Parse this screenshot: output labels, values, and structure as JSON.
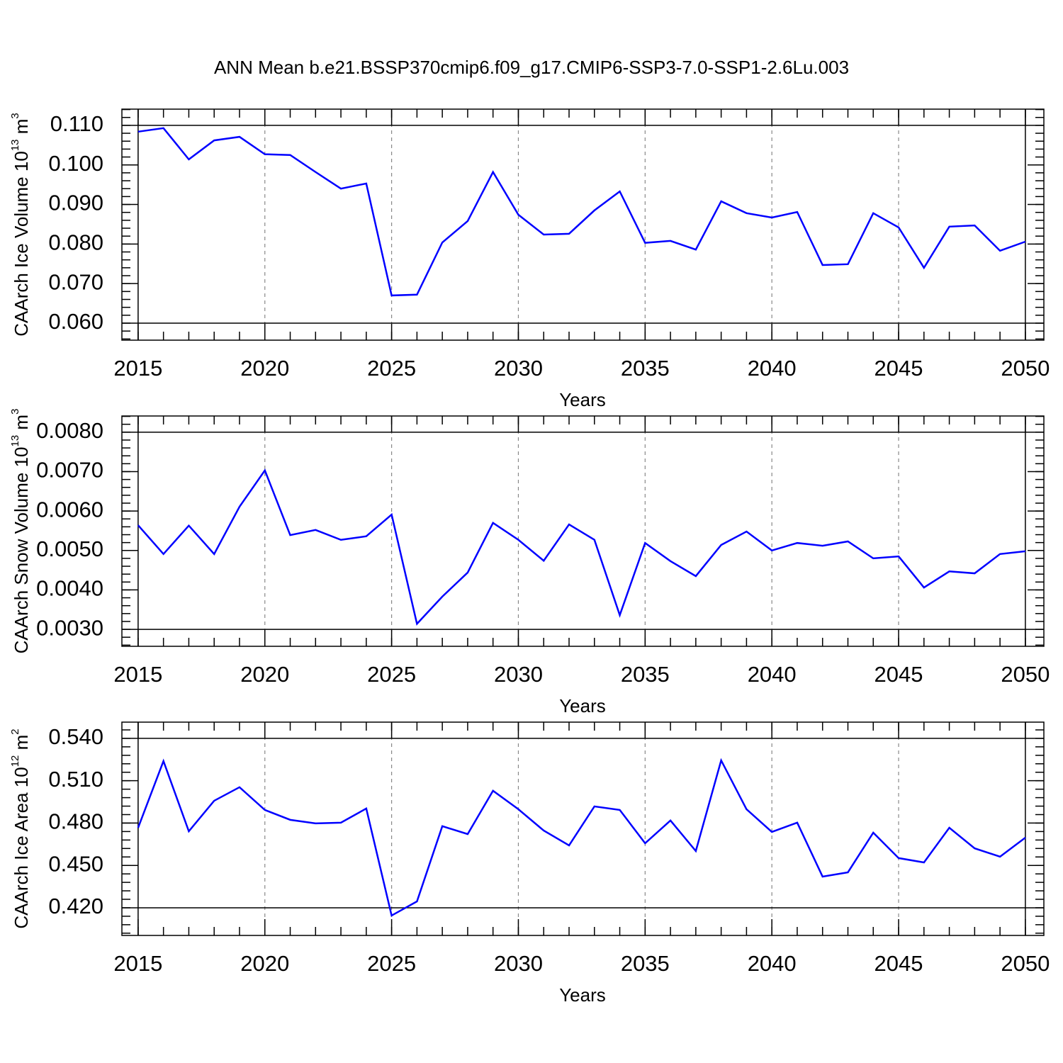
{
  "title": "ANN Mean b.e21.BSSP370cmip6.f09_g17.CMIP6-SSP3-7.0-SSP1-2.6Lu.003",
  "chart_data": [
    {
      "type": "line",
      "xlabel": "Years",
      "ylabel": {
        "text": "CAArch Ice Volume 10",
        "sup": "13",
        "unit": " m",
        "unit_sup": "3"
      },
      "x": [
        2015,
        2016,
        2017,
        2018,
        2019,
        2020,
        2021,
        2022,
        2023,
        2024,
        2025,
        2026,
        2027,
        2028,
        2029,
        2030,
        2031,
        2032,
        2033,
        2034,
        2035,
        2036,
        2037,
        2038,
        2039,
        2040,
        2041,
        2042,
        2043,
        2044,
        2045,
        2046,
        2047,
        2048,
        2049,
        2050
      ],
      "series": [
        {
          "color": "#0000ff",
          "values": [
            0.1084,
            0.1093,
            0.1014,
            0.1062,
            0.1071,
            0.1027,
            0.1025,
            0.0982,
            0.094,
            0.0953,
            0.067,
            0.0672,
            0.0804,
            0.0858,
            0.0982,
            0.0874,
            0.0824,
            0.0826,
            0.0885,
            0.0933,
            0.0803,
            0.0808,
            0.0786,
            0.0908,
            0.0878,
            0.0867,
            0.0881,
            0.0747,
            0.0749,
            0.0878,
            0.0842,
            0.074,
            0.0844,
            0.0847,
            0.0783,
            0.0806
          ]
        }
      ],
      "xlim": [
        2014.36,
        2050.73
      ],
      "xticks": [
        2015,
        2020,
        2025,
        2030,
        2035,
        2040,
        2045,
        2050
      ],
      "x_minor_step": 1,
      "ylim": [
        0.0557,
        0.1141
      ],
      "yticks": [
        {
          "value": 0.06,
          "label": "0.060"
        },
        {
          "value": 0.07,
          "label": "0.070"
        },
        {
          "value": 0.08,
          "label": "0.080"
        },
        {
          "value": 0.09,
          "label": "0.090"
        },
        {
          "value": 0.1,
          "label": "0.100"
        },
        {
          "value": 0.11,
          "label": "0.110"
        }
      ],
      "y_minor_step": 0.002,
      "xgrid": true
    },
    {
      "type": "line",
      "xlabel": "Years",
      "ylabel": {
        "text": "CAArch Snow Volume 10",
        "sup": "13",
        "unit": " m",
        "unit_sup": "3"
      },
      "x": [
        2015,
        2016,
        2017,
        2018,
        2019,
        2020,
        2021,
        2022,
        2023,
        2024,
        2025,
        2026,
        2027,
        2028,
        2029,
        2030,
        2031,
        2032,
        2033,
        2034,
        2035,
        2036,
        2037,
        2038,
        2039,
        2040,
        2041,
        2042,
        2043,
        2044,
        2045,
        2046,
        2047,
        2048,
        2049,
        2050
      ],
      "series": [
        {
          "color": "#0000ff",
          "values": [
            0.00564,
            0.00491,
            0.00563,
            0.00491,
            0.00611,
            0.00703,
            0.00539,
            0.00552,
            0.00527,
            0.00536,
            0.00591,
            0.00314,
            0.00383,
            0.00444,
            0.0057,
            0.00527,
            0.00474,
            0.00566,
            0.00527,
            0.00336,
            0.00519,
            0.00473,
            0.00435,
            0.00514,
            0.00548,
            0.005,
            0.00519,
            0.00512,
            0.00523,
            0.0048,
            0.00485,
            0.00406,
            0.00447,
            0.00442,
            0.00491,
            0.00498
          ]
        }
      ],
      "xlim": [
        2014.36,
        2050.73
      ],
      "xticks": [
        2015,
        2020,
        2025,
        2030,
        2035,
        2040,
        2045,
        2050
      ],
      "x_minor_step": 1,
      "ylim": [
        0.00257,
        0.00841
      ],
      "yticks": [
        {
          "value": 0.003,
          "label": "0.0030"
        },
        {
          "value": 0.004,
          "label": "0.0040"
        },
        {
          "value": 0.005,
          "label": "0.0050"
        },
        {
          "value": 0.006,
          "label": "0.0060"
        },
        {
          "value": 0.007,
          "label": "0.0070"
        },
        {
          "value": 0.008,
          "label": "0.0080"
        }
      ],
      "y_minor_step": 0.0002,
      "xgrid": true
    },
    {
      "type": "line",
      "xlabel": "Years",
      "ylabel": {
        "text": "CAArch Ice Area 10",
        "sup": "12",
        "unit": " m",
        "unit_sup": "2"
      },
      "x": [
        2015,
        2016,
        2017,
        2018,
        2019,
        2020,
        2021,
        2022,
        2023,
        2024,
        2025,
        2026,
        2027,
        2028,
        2029,
        2030,
        2031,
        2032,
        2033,
        2034,
        2035,
        2036,
        2037,
        2038,
        2039,
        2040,
        2041,
        2042,
        2043,
        2044,
        2045,
        2046,
        2047,
        2048,
        2049,
        2050
      ],
      "series": [
        {
          "color": "#0000ff",
          "values": [
            0.4767,
            0.5239,
            0.4742,
            0.4958,
            0.5054,
            0.4893,
            0.4823,
            0.4798,
            0.4803,
            0.4903,
            0.4145,
            0.4245,
            0.4778,
            0.4722,
            0.5029,
            0.4898,
            0.4747,
            0.4642,
            0.4918,
            0.4893,
            0.4657,
            0.4818,
            0.4602,
            0.5244,
            0.4898,
            0.4737,
            0.4803,
            0.4421,
            0.4451,
            0.4732,
            0.4552,
            0.4521,
            0.4767,
            0.4621,
            0.4562,
            0.4697
          ]
        }
      ],
      "xlim": [
        2014.36,
        2050.73
      ],
      "xticks": [
        2015,
        2020,
        2025,
        2030,
        2035,
        2040,
        2045,
        2050
      ],
      "x_minor_step": 1,
      "ylim": [
        0.4004,
        0.5515
      ],
      "yticks": [
        {
          "value": 0.42,
          "label": "0.420"
        },
        {
          "value": 0.45,
          "label": "0.450"
        },
        {
          "value": 0.48,
          "label": "0.480"
        },
        {
          "value": 0.51,
          "label": "0.510"
        },
        {
          "value": 0.54,
          "label": "0.540"
        }
      ],
      "y_minor_step": 0.006,
      "xgrid": true
    }
  ]
}
